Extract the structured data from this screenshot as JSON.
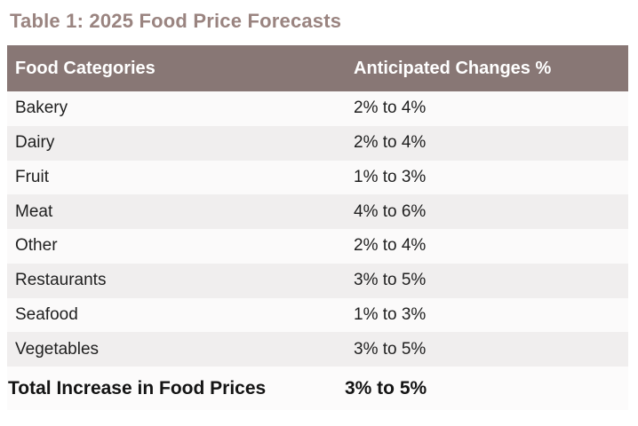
{
  "title": "Table 1: 2025 Food Price Forecasts",
  "colors": {
    "title_text": "#9a8480",
    "header_bg": "#887775",
    "header_text": "#ffffff",
    "row_odd_bg": "#fbfafa",
    "row_even_bg": "#f0eeee",
    "footer_bg": "#fcfbfb",
    "body_text": "#1f1f1f"
  },
  "table": {
    "header": {
      "col1": "Food Categories",
      "col2": "Anticipated Changes %"
    },
    "rows": [
      {
        "category": "Bakery",
        "change": "2% to 4%"
      },
      {
        "category": "Dairy",
        "change": "2% to 4%"
      },
      {
        "category": "Fruit",
        "change": "1% to 3%"
      },
      {
        "category": "Meat",
        "change": "4% to 6%"
      },
      {
        "category": "Other",
        "change": "2% to 4%"
      },
      {
        "category": "Restaurants",
        "change": "3% to 5%"
      },
      {
        "category": "Seafood",
        "change": "1% to 3%"
      },
      {
        "category": "Vegetables",
        "change": "3% to 5%"
      }
    ],
    "footer": {
      "label": "Total Increase in Food Prices",
      "value": "3% to 5%"
    }
  },
  "chart_data": {
    "type": "table",
    "title": "Table 1: 2025 Food Price Forecasts",
    "columns": [
      "Food Categories",
      "Anticipated Changes %"
    ],
    "rows": [
      [
        "Bakery",
        "2% to 4%"
      ],
      [
        "Dairy",
        "2% to 4%"
      ],
      [
        "Fruit",
        "1% to 3%"
      ],
      [
        "Meat",
        "4% to 6%"
      ],
      [
        "Other",
        "2% to 4%"
      ],
      [
        "Restaurants",
        "3% to 5%"
      ],
      [
        "Seafood",
        "1% to 3%"
      ],
      [
        "Vegetables",
        "3% to 5%"
      ]
    ],
    "footer_row": [
      "Total Increase in Food Prices",
      "3% to 5%"
    ],
    "layout": {
      "striped": true,
      "gridlines": false,
      "header_style": "solid-fill"
    }
  }
}
